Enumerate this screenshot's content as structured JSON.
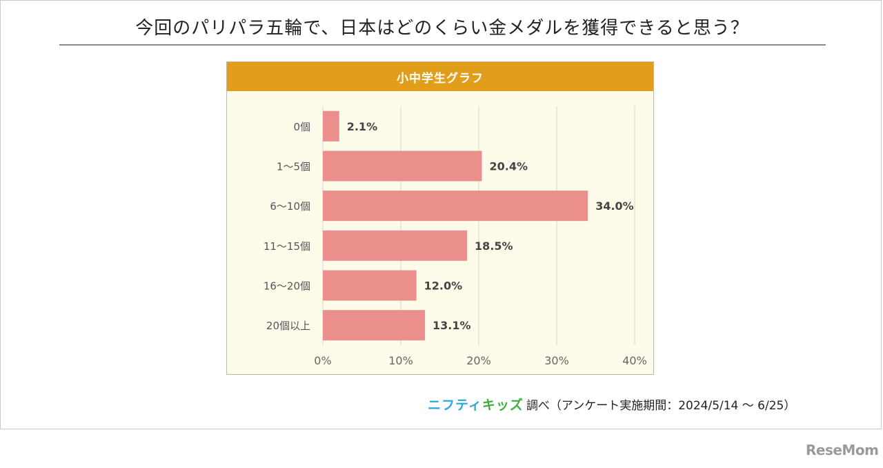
{
  "title": "今回のパリパラ五輪で、日本はどのくらい金メダルを獲得できると思う？",
  "source": {
    "brand_a": "ニフティ",
    "brand_b": "キッズ",
    "text": "調べ（アンケート実施期間：2024/5/14 ～ 6/25）"
  },
  "watermark": "ReseMom",
  "colors": {
    "bar": "#eb8f8d",
    "header": "#e19e1a",
    "panel": "#fdfbea",
    "grid": "#d8d6c4"
  },
  "chart_data": {
    "type": "bar",
    "orientation": "horizontal",
    "title": "小中学生グラフ",
    "categories": [
      "0個",
      "1～5個",
      "6～10個",
      "11～15個",
      "16～20個",
      "20個以上"
    ],
    "values": [
      2.1,
      20.4,
      34.0,
      18.5,
      12.0,
      13.1
    ],
    "value_labels": [
      "2.1%",
      "20.4%",
      "34.0%",
      "18.5%",
      "12.0%",
      "13.1%"
    ],
    "xlim": [
      0,
      40
    ],
    "xticks": [
      0,
      10,
      20,
      30,
      40
    ],
    "xtick_labels": [
      "0%",
      "10%",
      "20%",
      "30%",
      "40%"
    ],
    "grid": true,
    "legend": "none"
  }
}
